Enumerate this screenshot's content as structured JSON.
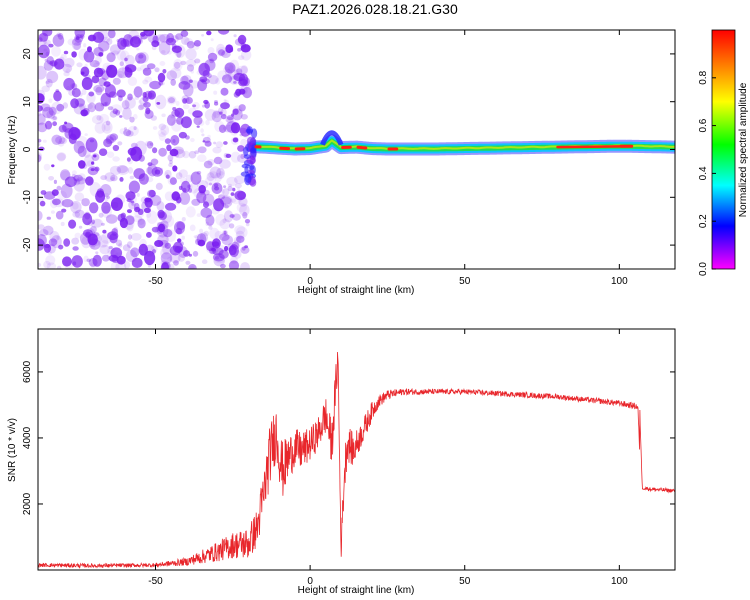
{
  "title": "PAZ1.2026.028.18.21.G30",
  "colors": {
    "scatter": "#7a1ff0",
    "line": "#e8262b",
    "axis": "#000000",
    "background": "#ffffff"
  },
  "chart_data": [
    {
      "type": "heatmap",
      "name": "spectrogram",
      "xlabel": "Height of straight line (km)",
      "ylabel": "Frequency (Hz)",
      "xlim": [
        -88,
        118
      ],
      "ylim": [
        -25,
        25
      ],
      "xticks": [
        -50,
        0,
        50,
        100
      ],
      "xtick_labels": [
        "-50",
        "0",
        "50",
        "100"
      ],
      "yticks": [
        -20,
        -10,
        0,
        10,
        20
      ],
      "ytick_labels": [
        "-20",
        "-10",
        "0",
        "10",
        "20"
      ],
      "noise_region_x": [
        -88,
        -20
      ],
      "signal_band": {
        "x": [
          -18,
          -15,
          -10,
          -5,
          0,
          5,
          7,
          10,
          15,
          20,
          25,
          30,
          40,
          50,
          60,
          70,
          80,
          90,
          100,
          110,
          118
        ],
        "center_freq": [
          0.6,
          0.5,
          0.3,
          0.1,
          0.2,
          0.7,
          1.8,
          0.4,
          0.5,
          0.2,
          0.1,
          0.1,
          0.1,
          0.2,
          0.3,
          0.4,
          0.5,
          0.6,
          0.7,
          0.6,
          0.5
        ],
        "amplitude": [
          0.9,
          0.6,
          0.8,
          0.9,
          0.7,
          0.6,
          0.5,
          0.8,
          0.9,
          0.7,
          1.0,
          0.6,
          0.4,
          0.5,
          0.4,
          0.4,
          0.45,
          0.7,
          0.8,
          0.6,
          0.5
        ]
      },
      "colorbar": {
        "label": "Normalized spectral amplitude",
        "range": [
          0,
          1
        ],
        "ticks": [
          0.0,
          0.2,
          0.4,
          0.6,
          0.8
        ],
        "tick_labels": [
          "0.0",
          "0.2",
          "0.4",
          "0.6",
          "0.8"
        ]
      }
    },
    {
      "type": "line",
      "name": "snr",
      "xlabel": "Height of straight line (km)",
      "ylabel": "SNR (10 * v/v)",
      "xlim": [
        -88,
        118
      ],
      "ylim": [
        0,
        7300
      ],
      "xticks": [
        -50,
        0,
        50,
        100
      ],
      "xtick_labels": [
        "-50",
        "0",
        "50",
        "100"
      ],
      "yticks": [
        2000,
        4000,
        6000
      ],
      "ytick_labels": [
        "2000",
        "4000",
        "6000"
      ],
      "series": [
        {
          "name": "SNR",
          "x": [
            -88,
            -70,
            -50,
            -40,
            -30,
            -25,
            -20,
            -17,
            -15,
            -13,
            -11,
            -9,
            -7,
            -5,
            -3,
            0,
            3,
            5,
            7,
            9,
            10,
            11,
            12,
            14,
            16,
            18,
            20,
            22,
            25,
            30,
            40,
            50,
            60,
            70,
            80,
            90,
            100,
            106,
            107,
            110,
            118
          ],
          "y": [
            150,
            130,
            150,
            250,
            550,
            750,
            800,
            1300,
            2300,
            3500,
            4200,
            3000,
            3400,
            3700,
            3600,
            3800,
            4200,
            4700,
            3800,
            6500,
            600,
            2800,
            3900,
            3600,
            4000,
            4400,
            4800,
            5100,
            5300,
            5400,
            5400,
            5400,
            5350,
            5300,
            5250,
            5150,
            5050,
            4950,
            2500,
            2450,
            2400
          ],
          "noise_amplitude": [
            60,
            60,
            60,
            120,
            300,
            400,
            500,
            600,
            800,
            900,
            900,
            900,
            700,
            600,
            600,
            500,
            500,
            600,
            700,
            600,
            300,
            700,
            600,
            500,
            400,
            350,
            300,
            200,
            150,
            100,
            80,
            80,
            80,
            80,
            80,
            80,
            90,
            100,
            60,
            60,
            60
          ]
        }
      ]
    }
  ]
}
